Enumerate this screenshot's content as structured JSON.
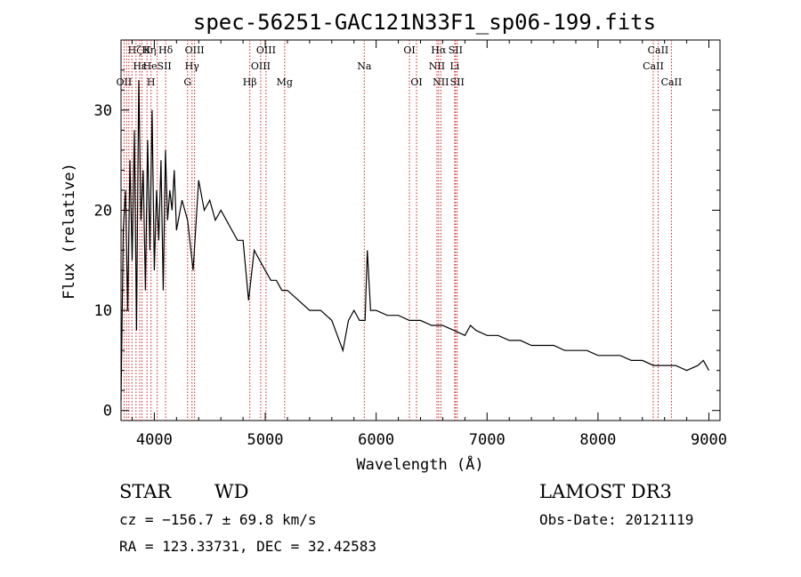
{
  "chart_data": {
    "type": "line",
    "title": "spec-56251-GAC121N33F1_sp06-199.fits",
    "xlabel": "Wavelength (Å)",
    "ylabel": "Flux (relative)",
    "xlim": [
      3700,
      9100
    ],
    "ylim": [
      -1,
      37
    ],
    "xticks": [
      4000,
      5000,
      6000,
      7000,
      8000,
      9000
    ],
    "yticks": [
      0,
      10,
      20,
      30
    ],
    "grid": false,
    "series": [
      {
        "name": "flux",
        "x": [
          3700,
          3720,
          3740,
          3760,
          3780,
          3800,
          3820,
          3840,
          3860,
          3880,
          3900,
          3920,
          3940,
          3960,
          3980,
          4000,
          4020,
          4040,
          4060,
          4080,
          4100,
          4120,
          4140,
          4160,
          4180,
          4200,
          4250,
          4300,
          4350,
          4400,
          4450,
          4500,
          4550,
          4600,
          4650,
          4700,
          4750,
          4800,
          4850,
          4900,
          4950,
          5000,
          5050,
          5100,
          5150,
          5200,
          5300,
          5400,
          5500,
          5600,
          5700,
          5750,
          5800,
          5850,
          5900,
          5920,
          5950,
          6000,
          6100,
          6200,
          6300,
          6400,
          6500,
          6600,
          6700,
          6800,
          6850,
          6900,
          7000,
          7100,
          7200,
          7300,
          7400,
          7500,
          7600,
          7700,
          7800,
          7900,
          8000,
          8100,
          8200,
          8300,
          8400,
          8500,
          8550,
          8600,
          8700,
          8800,
          8900,
          8950,
          9000
        ],
        "y": [
          1,
          18,
          22,
          10,
          25,
          15,
          28,
          8,
          33,
          19,
          24,
          12,
          27,
          16,
          30,
          14,
          22,
          17,
          25,
          12,
          26,
          19,
          22,
          20,
          24,
          18,
          21,
          19,
          14,
          23,
          20,
          21,
          19,
          20,
          19,
          18,
          17,
          17,
          11,
          16,
          15,
          14,
          13,
          13,
          12,
          12,
          11,
          10,
          10,
          9,
          6,
          9,
          10,
          9,
          9,
          16,
          10,
          10,
          9.5,
          9.5,
          9,
          9,
          8.5,
          8.5,
          8,
          7.5,
          8.5,
          8,
          7.5,
          7.5,
          7,
          7,
          6.5,
          6.5,
          6.5,
          6,
          6,
          6,
          5.5,
          5.5,
          5.5,
          5,
          5,
          4.5,
          4.5,
          4.5,
          4.5,
          4,
          4.5,
          5,
          4
        ]
      }
    ],
    "lines": [
      {
        "x": 3727,
        "labels": [
          "OII"
        ],
        "row": 2
      },
      {
        "x": 3750,
        "labels": [],
        "row": 0
      },
      {
        "x": 3771,
        "labels": [],
        "row": 0
      },
      {
        "x": 3798,
        "labels": [],
        "row": 0
      },
      {
        "x": 3835,
        "labels": [],
        "row": 0
      },
      {
        "x": 3869,
        "labels": [
          "Hε"
        ],
        "row": 1
      },
      {
        "x": 3889,
        "labels": [
          "Hζ",
          "Hη"
        ],
        "row": 0
      },
      {
        "x": 3934,
        "labels": [
          "K"
        ],
        "row": 0
      },
      {
        "x": 3970,
        "labels": [
          "H"
        ],
        "row": 2
      },
      {
        "x": 4026,
        "labels": [
          "He",
          "SII"
        ],
        "row": 1
      },
      {
        "x": 4102,
        "labels": [
          "Hδ"
        ],
        "row": 0
      },
      {
        "x": 4300,
        "labels": [
          "G"
        ],
        "row": 2
      },
      {
        "x": 4340,
        "labels": [
          "Hγ"
        ],
        "row": 1
      },
      {
        "x": 4363,
        "labels": [
          "OIII"
        ],
        "row": 0
      },
      {
        "x": 4861,
        "labels": [
          "Hβ"
        ],
        "row": 2
      },
      {
        "x": 4959,
        "labels": [
          "OIII"
        ],
        "row": 1
      },
      {
        "x": 5007,
        "labels": [
          "OIII"
        ],
        "row": 0
      },
      {
        "x": 5175,
        "labels": [
          "Mg"
        ],
        "row": 2
      },
      {
        "x": 5893,
        "labels": [
          "Na"
        ],
        "row": 1
      },
      {
        "x": 6300,
        "labels": [
          "OI"
        ],
        "row": 0
      },
      {
        "x": 6364,
        "labels": [
          "OI"
        ],
        "row": 2
      },
      {
        "x": 6548,
        "labels": [
          "NII"
        ],
        "row": 1
      },
      {
        "x": 6563,
        "labels": [
          "Hα"
        ],
        "row": 0
      },
      {
        "x": 6583,
        "labels": [
          "NII"
        ],
        "row": 2
      },
      {
        "x": 6708,
        "labels": [
          "Li"
        ],
        "row": 1
      },
      {
        "x": 6716,
        "labels": [
          "SII"
        ],
        "row": 0
      },
      {
        "x": 6731,
        "labels": [
          "SII"
        ],
        "row": 2
      },
      {
        "x": 8498,
        "labels": [
          "CaII"
        ],
        "row": 1
      },
      {
        "x": 8542,
        "labels": [
          "CaII"
        ],
        "row": 0
      },
      {
        "x": 8662,
        "labels": [
          "CaII"
        ],
        "row": 2
      }
    ]
  },
  "info": {
    "class": "STAR",
    "subclass": "WD",
    "survey": "LAMOST DR3",
    "cz": "cz = −156.7 ± 69.8 km/s",
    "obs_date": "Obs-Date: 20121119",
    "coords": "RA = 123.33731, DEC =  32.42583"
  },
  "colors": {
    "line": "#000000",
    "marker": "#cc2222",
    "axis": "#000000",
    "background": "#ffffff"
  }
}
